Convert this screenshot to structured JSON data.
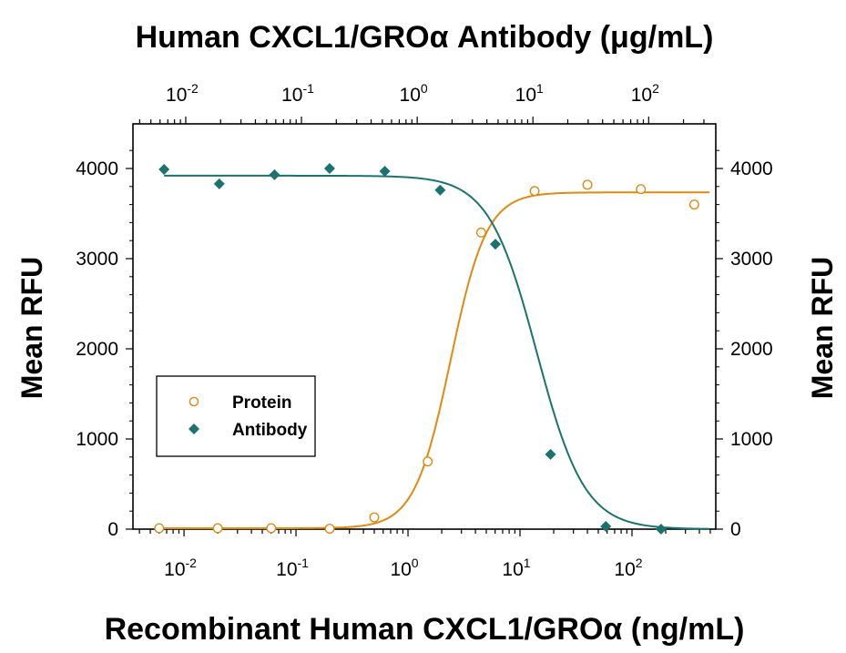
{
  "chart_data": {
    "type": "scatter",
    "title_top": "Human CXCL1/GROα Antibody (μg/mL)",
    "xlabel": "Recombinant Human CXCL1/GROα (ng/mL)",
    "ylabel_left": "Mean RFU",
    "ylabel_right": "Mean RFU",
    "bottom_axis": {
      "scale": "log",
      "xlim": [
        0.0035,
        560
      ],
      "ticks": [
        0.01,
        0.1,
        1,
        10,
        100
      ],
      "tick_labels": [
        {
          "base": "10",
          "exp": "-2"
        },
        {
          "base": "10",
          "exp": "-1"
        },
        {
          "base": "10",
          "exp": "0"
        },
        {
          "base": "10",
          "exp": "1"
        },
        {
          "base": "10",
          "exp": "2"
        }
      ]
    },
    "top_axis": {
      "scale": "log",
      "xlim": [
        0.0035,
        380
      ],
      "ticks": [
        0.01,
        0.1,
        1,
        10,
        100
      ],
      "tick_labels": [
        {
          "base": "10",
          "exp": "-2"
        },
        {
          "base": "10",
          "exp": "-1"
        },
        {
          "base": "10",
          "exp": "0"
        },
        {
          "base": "10",
          "exp": "1"
        },
        {
          "base": "10",
          "exp": "2"
        }
      ]
    },
    "y_axis": {
      "ylim": [
        0,
        4000
      ],
      "ticks": [
        0,
        1000,
        2000,
        3000,
        4000
      ],
      "tick_labels": [
        "0",
        "1000",
        "2000",
        "3000",
        "4000"
      ]
    },
    "grid": false,
    "legend_position": "left",
    "series": [
      {
        "name": "Protein",
        "color": "#e08a12",
        "marker": "open-circle",
        "axis": "bottom",
        "x": [
          0.006,
          0.02,
          0.06,
          0.2,
          0.5,
          1.5,
          4.5,
          13.5,
          40,
          120,
          360
        ],
        "y": [
          10,
          10,
          10,
          5,
          130,
          750,
          3290,
          3750,
          3820,
          3770,
          3600
        ],
        "fit": {
          "bottom": 10,
          "top": 3735,
          "ec50": 2.4,
          "hill": 2.7
        }
      },
      {
        "name": "Antibody",
        "color": "#1a7370",
        "marker": "filled-diamond",
        "axis": "top",
        "x": [
          0.0065,
          0.0195,
          0.0585,
          0.175,
          0.525,
          1.58,
          4.74,
          14.2,
          42.6,
          128
        ],
        "y": [
          3990,
          3830,
          3930,
          4000,
          3970,
          3760,
          3160,
          830,
          30,
          0
        ],
        "fit": {
          "bottom": 0,
          "top": 3920,
          "ec50": 10.8,
          "hill": 2.1
        }
      }
    ]
  }
}
